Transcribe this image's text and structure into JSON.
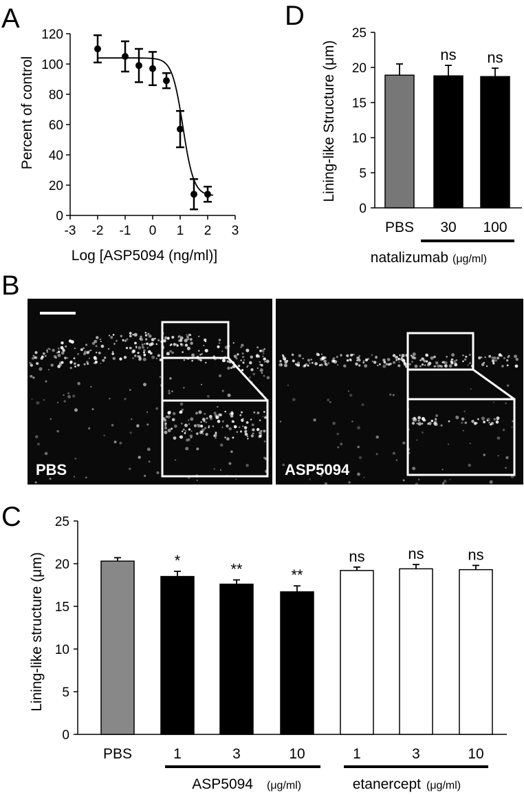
{
  "panels": {
    "A": {
      "letter": "A",
      "xlabel": "Log [ASP5094 (ng/ml)]",
      "ylabel": "Percent of control",
      "xticks": [
        "-3",
        "-2",
        "-1",
        "0",
        "1",
        "2",
        "3"
      ],
      "yticks": [
        "0",
        "20",
        "40",
        "60",
        "80",
        "100",
        "120"
      ]
    },
    "B": {
      "letter": "B",
      "left_label": "PBS",
      "right_label": "ASP5094"
    },
    "C": {
      "letter": "C",
      "ylabel": "Lining-like structure (μm)",
      "yticks": [
        "0",
        "5",
        "10",
        "15",
        "20",
        "25"
      ],
      "categories": [
        "PBS",
        "1",
        "3",
        "10",
        "1",
        "3",
        "10"
      ],
      "significance": [
        "",
        "*",
        "**",
        "**",
        "ns",
        "ns",
        "ns"
      ],
      "group1_name": "ASP5094",
      "group1_unit": "(μg/ml)",
      "group2_name": "etanercept",
      "group2_unit": "(μg/ml)"
    },
    "D": {
      "letter": "D",
      "ylabel": "Lining-like Structure (μm)",
      "yticks": [
        "0",
        "5",
        "10",
        "15",
        "20",
        "25"
      ],
      "categories": [
        "PBS",
        "30",
        "100"
      ],
      "significance": [
        "",
        "ns",
        "ns"
      ],
      "group_name": "natalizumab",
      "group_unit": "(μg/ml)"
    }
  },
  "chart_data": [
    {
      "panel": "A",
      "type": "scatter",
      "x": [
        -2,
        -1,
        -0.5,
        0,
        0.5,
        1,
        1.5,
        2
      ],
      "y": [
        110,
        105,
        99,
        97,
        89,
        57,
        14,
        14
      ],
      "error": [
        9,
        10,
        11,
        11,
        5,
        12,
        10,
        5
      ],
      "fit_curve": {
        "top": 104,
        "bottom": 13,
        "logEC50": 1.1,
        "hill": -2.2
      },
      "xlim": [
        -3,
        3
      ],
      "ylim": [
        0,
        120
      ],
      "xlabel": "Log [ASP5094 (ng/ml)]",
      "ylabel": "Percent of control"
    },
    {
      "panel": "C",
      "type": "bar",
      "categories": [
        "PBS",
        "1",
        "3",
        "10",
        "1",
        "3",
        "10"
      ],
      "values": [
        20.3,
        18.5,
        17.6,
        16.7,
        19.2,
        19.4,
        19.3
      ],
      "error": [
        0.4,
        0.6,
        0.5,
        0.7,
        0.4,
        0.5,
        0.5
      ],
      "fills": [
        "#888888",
        "#000000",
        "#000000",
        "#000000",
        "#ffffff",
        "#ffffff",
        "#ffffff"
      ],
      "ylim": [
        0,
        25
      ],
      "ylabel": "Lining-like structure (μm)"
    },
    {
      "panel": "D",
      "type": "bar",
      "categories": [
        "PBS",
        "30",
        "100"
      ],
      "values": [
        18.9,
        18.8,
        18.7
      ],
      "error": [
        1.6,
        1.5,
        1.2
      ],
      "fills": [
        "#777777",
        "#000000",
        "#000000"
      ],
      "ylim": [
        0,
        25
      ],
      "ylabel": "Lining-like Structure (μm)"
    }
  ]
}
